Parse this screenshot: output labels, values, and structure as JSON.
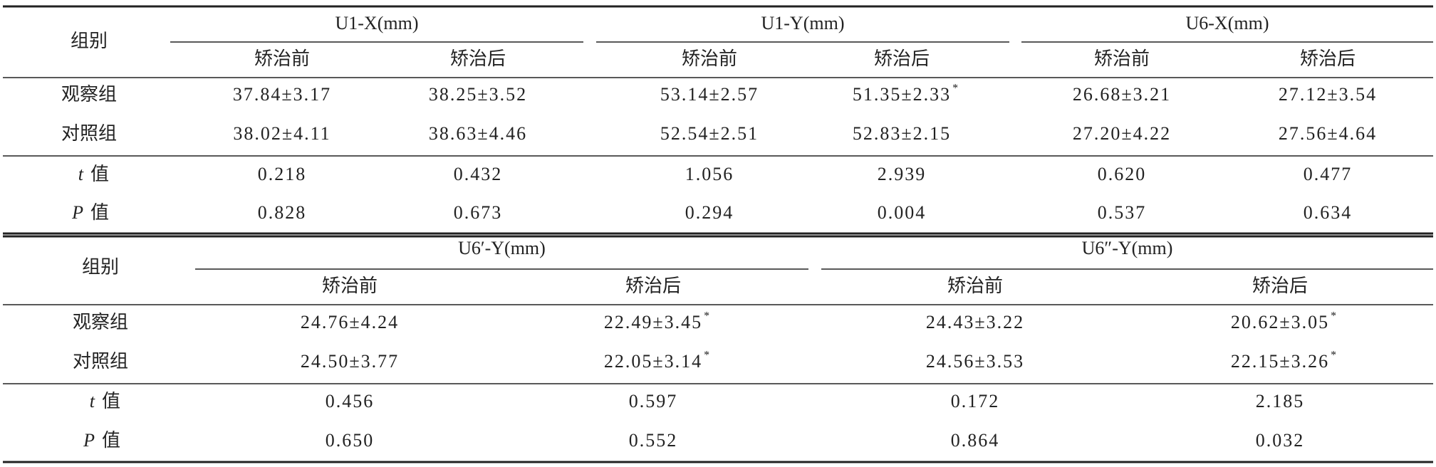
{
  "table_1": {
    "group_label": "组别",
    "groups": [
      {
        "title": "U1-X(mm)",
        "columns": [
          "矫治前",
          "矫治后"
        ]
      },
      {
        "title": "U1-Y(mm)",
        "columns": [
          "矫治前",
          "矫治后"
        ]
      },
      {
        "title": "U6-X(mm)",
        "columns": [
          "矫治前",
          "矫治后"
        ]
      }
    ],
    "rows": [
      {
        "label": "观察组",
        "cells": [
          {
            "value": "37.84±3.17"
          },
          {
            "value": "38.25±3.52"
          },
          {
            "value": "53.14±2.57"
          },
          {
            "value": "51.35±2.33",
            "mark": "*"
          },
          {
            "value": "26.68±3.21"
          },
          {
            "value": "27.12±3.54"
          }
        ]
      },
      {
        "label": "对照组",
        "cells": [
          {
            "value": "38.02±4.11"
          },
          {
            "value": "38.63±4.46"
          },
          {
            "value": "52.54±2.51"
          },
          {
            "value": "52.83±2.15"
          },
          {
            "value": "27.20±4.22"
          },
          {
            "value": "27.56±4.64"
          }
        ]
      },
      {
        "label": {
          "symbol": "t",
          "text": "值"
        },
        "cells": [
          {
            "value": "0.218"
          },
          {
            "value": "0.432"
          },
          {
            "value": "1.056"
          },
          {
            "value": "2.939"
          },
          {
            "value": "0.620"
          },
          {
            "value": "0.477"
          }
        ]
      },
      {
        "label": {
          "symbol": "P",
          "text": "值"
        },
        "cells": [
          {
            "value": "0.828"
          },
          {
            "value": "0.673"
          },
          {
            "value": "0.294"
          },
          {
            "value": "0.004"
          },
          {
            "value": "0.537"
          },
          {
            "value": "0.634"
          }
        ]
      }
    ]
  },
  "table_2": {
    "group_label": "组别",
    "groups": [
      {
        "title": "U6′-Y(mm)",
        "columns": [
          "矫治前",
          "矫治后"
        ]
      },
      {
        "title": "U6″-Y(mm)",
        "columns": [
          "矫治前",
          "矫治后"
        ]
      }
    ],
    "rows": [
      {
        "label": "观察组",
        "cells": [
          {
            "value": "24.76±4.24"
          },
          {
            "value": "22.49±3.45",
            "mark": "*"
          },
          {
            "value": "24.43±3.22"
          },
          {
            "value": "20.62±3.05",
            "mark": "*"
          }
        ]
      },
      {
        "label": "对照组",
        "cells": [
          {
            "value": "24.50±3.77"
          },
          {
            "value": "22.05±3.14",
            "mark": "*"
          },
          {
            "value": "24.56±3.53"
          },
          {
            "value": "22.15±3.26",
            "mark": "*"
          }
        ]
      },
      {
        "label": {
          "symbol": "t",
          "text": "值"
        },
        "cells": [
          {
            "value": "0.456"
          },
          {
            "value": "0.597"
          },
          {
            "value": "0.172"
          },
          {
            "value": "2.185"
          }
        ]
      },
      {
        "label": {
          "symbol": "P",
          "text": "值"
        },
        "cells": [
          {
            "value": "0.650"
          },
          {
            "value": "0.552"
          },
          {
            "value": "0.864"
          },
          {
            "value": "0.032"
          }
        ]
      }
    ]
  }
}
